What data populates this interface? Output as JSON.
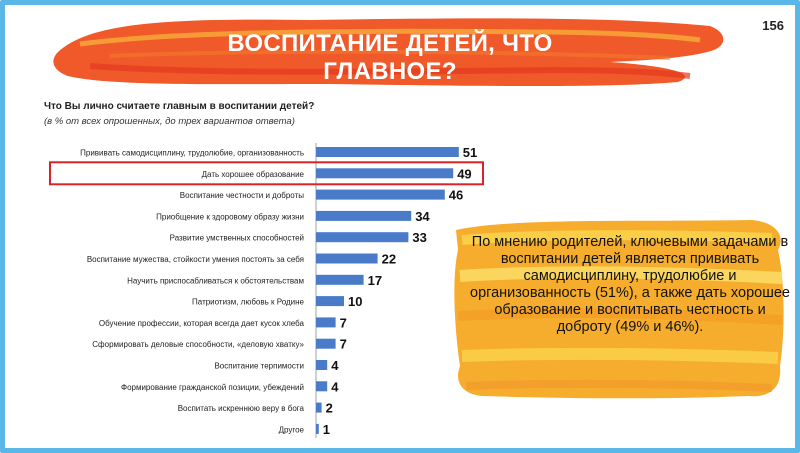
{
  "page_number": "156",
  "title": "ВОСПИТАНИЕ ДЕТЕЙ, ЧТО ГЛАВНОЕ?",
  "note": "По мнению родителей, ключевыми задачами в воспитании детей является прививать самодисциплину, трудолюбие и организованность (51%), а также дать хорошее образование и воспитывать честность и доброту (49% и 46%).",
  "colors": {
    "bar": "#4a7bc8",
    "highlight": "#d8232a",
    "frame": "#5ab7e8",
    "brush": "#f0592a"
  },
  "chart_data": {
    "type": "bar",
    "orientation": "horizontal",
    "title": "Что Вы лично считаете главным в воспитании детей?",
    "subtitle": "(в % от всех опрошенных,  до трех вариантов ответа)",
    "categories": [
      "Прививать  самодисциплину, трудолюбие, организованность",
      "Дать хорошее образование",
      "Воспитание  честности и доброты",
      "Приобщение  к здоровому образу жизни",
      "Развитие  умственных способностей",
      "Воспитание мужества, стойкости умения постоять за себя",
      "Научить  приспосабливаться  к обстоятельствам",
      "Патриотизм,  любовь  к Родине",
      "Обучение  профессии, которая всегда дает кусок хлеба",
      "Сформировать  деловые способности, «деловую хватку»",
      "Воспитание  терпимости",
      "Формирование   гражданской позиции, убеждений",
      "Воспитать  искреннюю  веру в бога",
      "Другое"
    ],
    "values": [
      51,
      49,
      46,
      34,
      33,
      22,
      17,
      10,
      7,
      7,
      4,
      4,
      2,
      1
    ],
    "highlighted_index": 1,
    "grid": false,
    "legend": "none"
  }
}
